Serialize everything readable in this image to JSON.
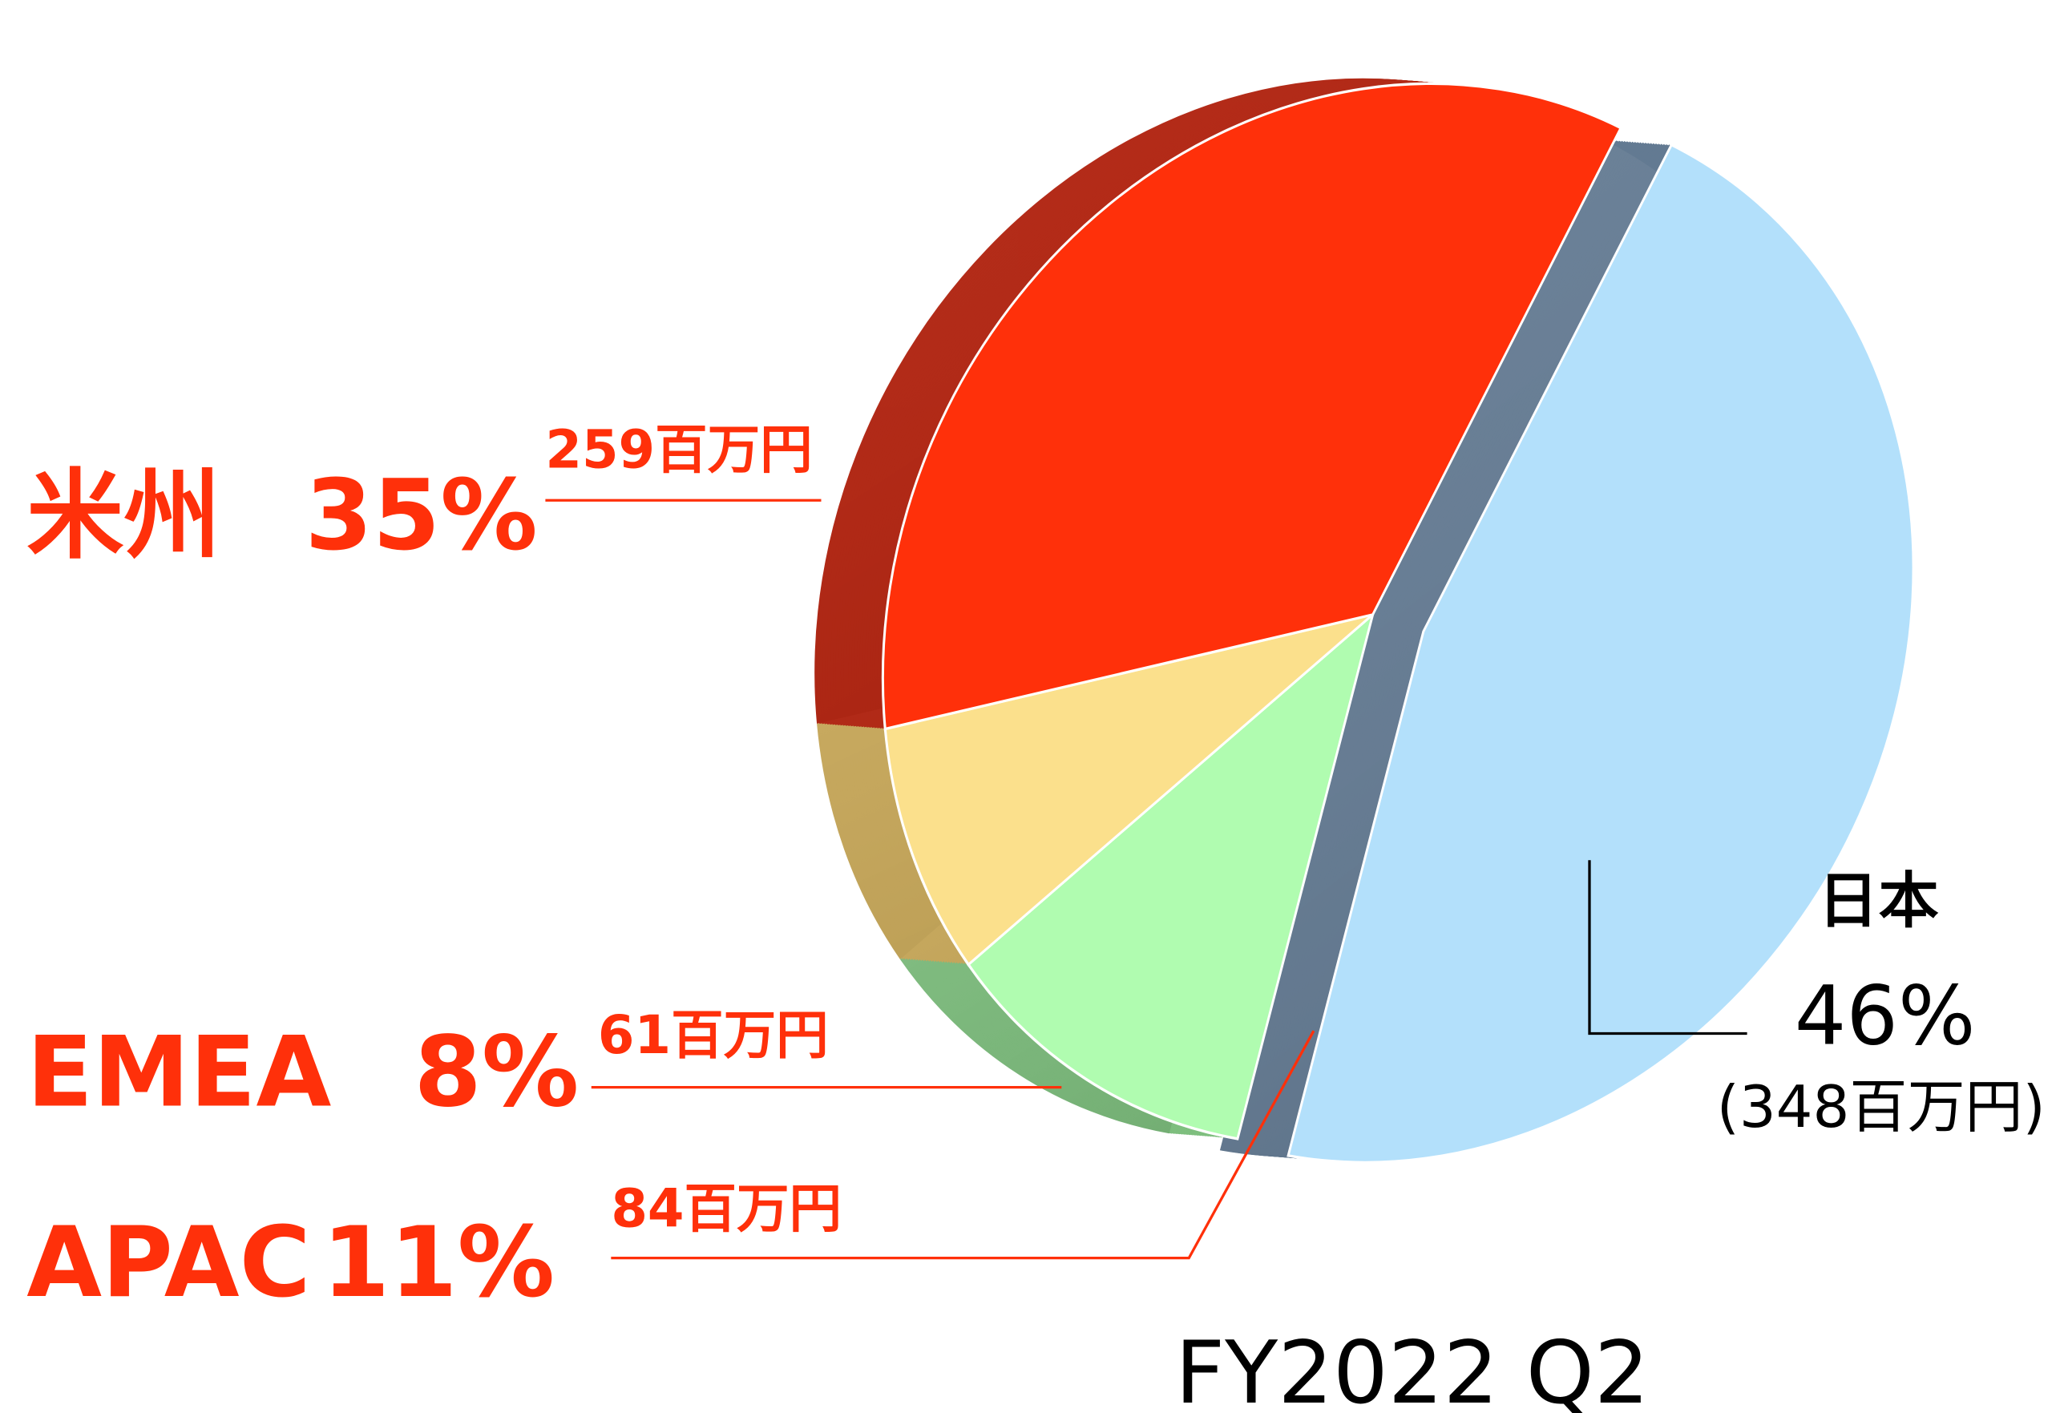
{
  "chart_data": {
    "type": "pie",
    "title": "FY2022 Q2",
    "categories": [
      "日本",
      "APAC",
      "EMEA",
      "米州"
    ],
    "values": [
      46,
      11,
      8,
      35
    ],
    "value_labels": [
      "46%",
      "11%",
      "8%",
      "35%"
    ],
    "amount_labels": [
      "(348百万円)",
      "84百万円",
      "61百万円",
      "259百万円"
    ],
    "colors": [
      "#b3e0fb",
      "#b0fcb0",
      "#fbe08c",
      "#ff300a"
    ],
    "side_colors": [
      "#637a92",
      "#7fbf7f",
      "#c9a95a",
      "#b2220e"
    ],
    "exploded": [
      true,
      false,
      false,
      false
    ]
  }
}
